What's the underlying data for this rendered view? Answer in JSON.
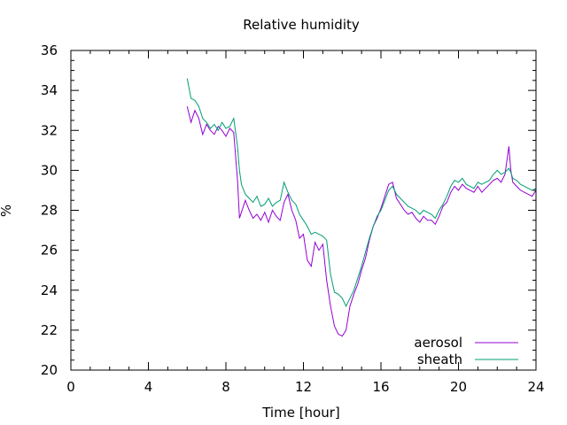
{
  "chart_data": {
    "type": "line",
    "title": "Relative humidity",
    "xlabel": "Time [hour]",
    "ylabel": "%",
    "xlim": [
      0,
      24
    ],
    "ylim": [
      20,
      36
    ],
    "xticks": [
      0,
      4,
      8,
      12,
      16,
      20,
      24
    ],
    "yticks": [
      20,
      22,
      24,
      26,
      28,
      30,
      32,
      34,
      36
    ],
    "grid": false,
    "legend_position": "bottom-right",
    "series": [
      {
        "name": "aerosol",
        "color": "#9400d3",
        "x": [
          6.0,
          6.2,
          6.4,
          6.6,
          6.8,
          7.0,
          7.2,
          7.4,
          7.6,
          7.8,
          8.0,
          8.2,
          8.4,
          8.6,
          8.7,
          8.8,
          9.0,
          9.2,
          9.4,
          9.6,
          9.8,
          10.0,
          10.2,
          10.4,
          10.6,
          10.8,
          11.0,
          11.2,
          11.4,
          11.6,
          11.8,
          12.0,
          12.2,
          12.4,
          12.6,
          12.8,
          13.0,
          13.2,
          13.4,
          13.6,
          13.8,
          14.0,
          14.2,
          14.4,
          14.6,
          14.8,
          15.0,
          15.2,
          15.4,
          15.6,
          15.8,
          16.0,
          16.2,
          16.4,
          16.6,
          16.8,
          17.0,
          17.2,
          17.4,
          17.6,
          17.8,
          18.0,
          18.2,
          18.4,
          18.6,
          18.8,
          19.0,
          19.2,
          19.4,
          19.6,
          19.8,
          20.0,
          20.2,
          20.4,
          20.6,
          20.8,
          21.0,
          21.2,
          21.4,
          21.6,
          21.8,
          22.0,
          22.2,
          22.4,
          22.6,
          22.7,
          22.8,
          23.0,
          23.2,
          23.4,
          23.6,
          23.8,
          24.0
        ],
        "y": [
          33.2,
          32.4,
          33.0,
          32.6,
          31.8,
          32.3,
          32.0,
          31.8,
          32.2,
          32.0,
          31.7,
          32.1,
          31.9,
          29.5,
          27.6,
          27.9,
          28.5,
          28.0,
          27.6,
          27.8,
          27.5,
          27.9,
          27.4,
          28.0,
          27.7,
          27.5,
          28.4,
          28.8,
          28.0,
          27.5,
          26.6,
          26.8,
          25.5,
          25.2,
          26.4,
          26.0,
          26.3,
          24.5,
          23.2,
          22.2,
          21.8,
          21.7,
          22.0,
          23.2,
          23.8,
          24.3,
          25.0,
          25.6,
          26.5,
          27.2,
          27.6,
          28.1,
          28.7,
          29.3,
          29.4,
          28.6,
          28.3,
          28.0,
          27.8,
          27.9,
          27.6,
          27.4,
          27.7,
          27.5,
          27.5,
          27.3,
          27.7,
          28.2,
          28.4,
          28.9,
          29.2,
          29.0,
          29.3,
          29.1,
          29.0,
          28.9,
          29.2,
          28.9,
          29.1,
          29.3,
          29.5,
          29.6,
          29.4,
          29.8,
          31.2,
          30.0,
          29.4,
          29.2,
          29.0,
          28.9,
          28.8,
          28.7,
          29.0
        ]
      },
      {
        "name": "sheath",
        "color": "#009e73",
        "x": [
          6.0,
          6.2,
          6.4,
          6.6,
          6.8,
          7.0,
          7.2,
          7.4,
          7.6,
          7.8,
          8.0,
          8.2,
          8.4,
          8.6,
          8.7,
          8.8,
          9.0,
          9.2,
          9.4,
          9.6,
          9.8,
          10.0,
          10.2,
          10.4,
          10.6,
          10.8,
          11.0,
          11.2,
          11.4,
          11.6,
          11.8,
          12.0,
          12.2,
          12.4,
          12.6,
          12.8,
          13.0,
          13.2,
          13.4,
          13.6,
          13.8,
          14.0,
          14.2,
          14.4,
          14.6,
          14.8,
          15.0,
          15.2,
          15.4,
          15.6,
          15.8,
          16.0,
          16.2,
          16.4,
          16.6,
          16.8,
          17.0,
          17.2,
          17.4,
          17.6,
          17.8,
          18.0,
          18.2,
          18.4,
          18.6,
          18.8,
          19.0,
          19.2,
          19.4,
          19.6,
          19.8,
          20.0,
          20.2,
          20.4,
          20.6,
          20.8,
          21.0,
          21.2,
          21.4,
          21.6,
          21.8,
          22.0,
          22.2,
          22.4,
          22.6,
          22.7,
          22.8,
          23.0,
          23.2,
          23.4,
          23.6,
          23.8,
          24.0
        ],
        "y": [
          34.6,
          33.6,
          33.5,
          33.2,
          32.6,
          32.4,
          32.1,
          32.3,
          32.0,
          32.4,
          32.1,
          32.2,
          32.6,
          31.2,
          30.0,
          29.3,
          28.8,
          28.6,
          28.4,
          28.7,
          28.2,
          28.3,
          28.6,
          28.2,
          28.4,
          28.5,
          29.4,
          28.9,
          28.5,
          28.3,
          27.8,
          27.5,
          27.2,
          26.8,
          26.9,
          26.8,
          26.7,
          26.5,
          24.8,
          23.9,
          23.8,
          23.6,
          23.2,
          23.6,
          24.0,
          24.6,
          25.2,
          25.9,
          26.6,
          27.2,
          27.7,
          28.0,
          28.5,
          29.0,
          29.2,
          28.8,
          28.6,
          28.4,
          28.2,
          28.1,
          28.0,
          27.8,
          28.0,
          27.9,
          27.8,
          27.6,
          28.0,
          28.3,
          28.7,
          29.2,
          29.5,
          29.4,
          29.6,
          29.3,
          29.2,
          29.1,
          29.4,
          29.3,
          29.4,
          29.5,
          29.8,
          30.0,
          29.8,
          29.9,
          30.1,
          29.9,
          29.6,
          29.5,
          29.3,
          29.2,
          29.1,
          29.0,
          29.1
        ]
      }
    ]
  }
}
